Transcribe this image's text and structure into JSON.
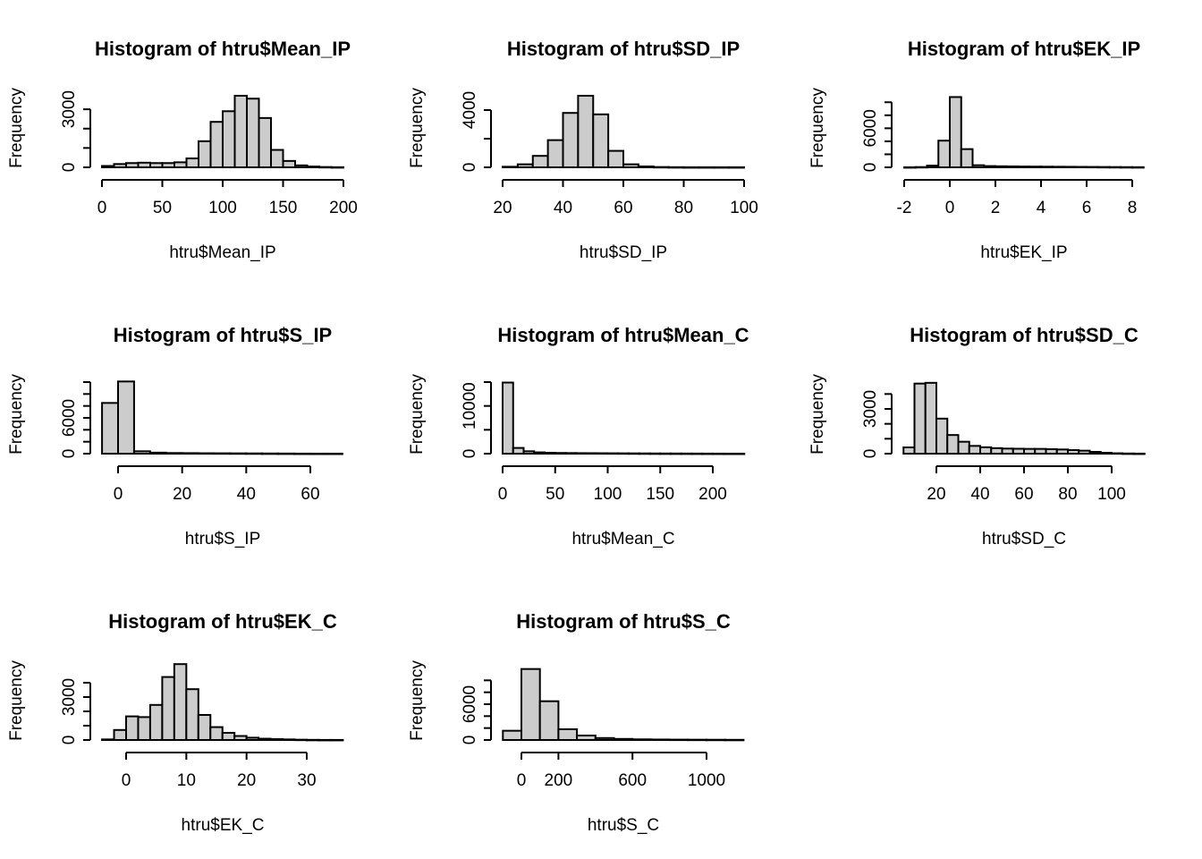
{
  "chart_data": [
    {
      "type": "bar",
      "title": "Histogram of htru$Mean_IP",
      "xlabel": "htru$Mean_IP",
      "ylabel": "Frequency",
      "xlim": [
        0,
        200
      ],
      "ylim": [
        0,
        3700
      ],
      "xticks": [
        0,
        50,
        100,
        150,
        200
      ],
      "yticks": [
        0,
        3000
      ],
      "ytick_labels_rotated": [
        0,
        3000
      ],
      "yticks_unlabeled": [
        1000,
        2000
      ],
      "bin_width": 10,
      "bins_start": 0,
      "values": [
        70,
        170,
        220,
        240,
        220,
        220,
        260,
        460,
        1350,
        2350,
        2900,
        3700,
        3550,
        2550,
        900,
        330,
        100,
        40,
        15,
        5
      ]
    },
    {
      "type": "bar",
      "title": "Histogram of htru$SD_IP",
      "xlabel": "htru$SD_IP",
      "ylabel": "Frequency",
      "xlim": [
        20,
        100
      ],
      "ylim": [
        0,
        5000
      ],
      "xticks": [
        20,
        40,
        60,
        80,
        100
      ],
      "yticks": [
        0,
        4000
      ],
      "yticks_unlabeled": [
        2000
      ],
      "bin_width": 5,
      "bins_start": 20,
      "values": [
        40,
        210,
        800,
        1900,
        3800,
        5000,
        3700,
        1150,
        210,
        60,
        20,
        10,
        5,
        5,
        5,
        5
      ]
    },
    {
      "type": "bar",
      "title": "Histogram of htru$EK_IP",
      "xlabel": "htru$EK_IP",
      "ylabel": "Frequency",
      "xlim": [
        -2,
        8
      ],
      "ylim": [
        0,
        11000
      ],
      "xticks": [
        -2,
        0,
        2,
        4,
        6,
        8
      ],
      "yticks": [
        0,
        6000
      ],
      "yticks_unlabeled": [
        2000,
        4000,
        8000,
        10000
      ],
      "bin_width": 0.5,
      "bins_start": -2,
      "values": [
        10,
        40,
        260,
        4100,
        10800,
        2800,
        320,
        190,
        160,
        140,
        120,
        110,
        100,
        90,
        80,
        70,
        60,
        50,
        40,
        30,
        20
      ]
    },
    {
      "type": "bar",
      "title": "Histogram of htru$S_IP",
      "xlabel": "htru$S_IP",
      "ylabel": "Frequency",
      "xlim": [
        0,
        60
      ],
      "ylim": [
        0,
        12000
      ],
      "xticks": [
        0,
        20,
        40,
        60
      ],
      "yticks": [
        0,
        6000
      ],
      "yticks_unlabeled": [
        2000,
        4000,
        8000,
        10000,
        12000
      ],
      "bin_width": 5,
      "bins_start": -5,
      "values": [
        8500,
        12100,
        400,
        170,
        110,
        90,
        70,
        60,
        50,
        40,
        30,
        20,
        10,
        5,
        5
      ]
    },
    {
      "type": "bar",
      "title": "Histogram of htru$Mean_C",
      "xlabel": "htru$Mean_C",
      "ylabel": "Frequency",
      "xlim": [
        0,
        200
      ],
      "ylim": [
        0,
        15000
      ],
      "xticks": [
        0,
        50,
        100,
        150,
        200
      ],
      "yticks": [
        0,
        10000
      ],
      "yticks_unlabeled": [
        5000,
        15000
      ],
      "bin_width": 10,
      "bins_start": 0,
      "values": [
        14900,
        1200,
        500,
        270,
        190,
        150,
        130,
        110,
        100,
        90,
        80,
        70,
        60,
        50,
        40,
        35,
        30,
        25,
        20,
        15,
        10,
        5,
        5
      ]
    },
    {
      "type": "bar",
      "title": "Histogram of htru$SD_C",
      "xlabel": "htru$SD_C",
      "ylabel": "Frequency",
      "xlim": [
        20,
        100
      ],
      "ylim": [
        0,
        4800
      ],
      "xticks": [
        20,
        40,
        60,
        80,
        100
      ],
      "yticks": [
        0,
        3000
      ],
      "yticks_unlabeled": [
        1000,
        2000,
        4000
      ],
      "bin_width": 5,
      "bins_start": 5,
      "values": [
        420,
        4700,
        4750,
        2350,
        1250,
        800,
        520,
        430,
        370,
        340,
        330,
        320,
        320,
        300,
        280,
        240,
        200,
        120,
        60,
        25,
        10,
        5
      ]
    },
    {
      "type": "bar",
      "title": "Histogram of htru$EK_C",
      "xlabel": "htru$EK_C",
      "ylabel": "Frequency",
      "xlim": [
        0,
        30
      ],
      "ylim": [
        0,
        5000
      ],
      "xticks": [
        0,
        10,
        20,
        30
      ],
      "yticks": [
        0,
        3000
      ],
      "yticks_unlabeled": [
        1000,
        2000,
        4000
      ],
      "bin_width": 2,
      "bins_start": -4,
      "values": [
        40,
        700,
        1650,
        1600,
        2450,
        4400,
        5300,
        3550,
        1750,
        900,
        500,
        280,
        160,
        90,
        60,
        40,
        20,
        10,
        5,
        5
      ]
    },
    {
      "type": "bar",
      "title": "Histogram of htru$S_C",
      "xlabel": "htru$S_C",
      "ylabel": "Frequency",
      "xlim": [
        0,
        1000
      ],
      "ylim": [
        0,
        12000
      ],
      "xticks": [
        0,
        200,
        600,
        1000
      ],
      "yticks": [
        0,
        6000
      ],
      "yticks_unlabeled": [
        2000,
        4000,
        8000,
        10000
      ],
      "bin_width": 100,
      "bins_start": -100,
      "values": [
        1550,
        11900,
        6500,
        1800,
        750,
        330,
        180,
        110,
        80,
        60,
        50,
        40,
        30
      ]
    }
  ]
}
